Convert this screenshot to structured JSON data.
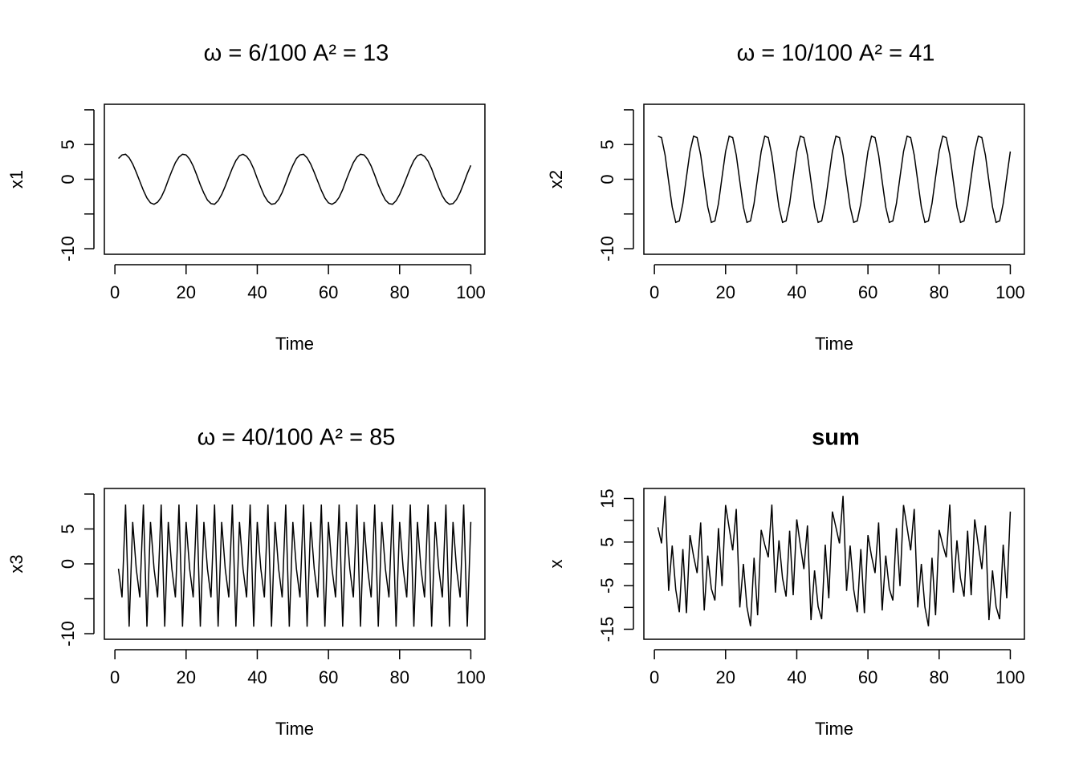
{
  "chart_data": [
    {
      "type": "line",
      "title": "ω = 6/100   A² = 13",
      "xlabel": "Time",
      "ylabel": "x1",
      "color": "#000000",
      "x": [
        1,
        2,
        3,
        4,
        5,
        6,
        7,
        8,
        9,
        10,
        11,
        12,
        13,
        14,
        15,
        16,
        17,
        18,
        19,
        20,
        21,
        22,
        23,
        24,
        25,
        26,
        27,
        28,
        29,
        30,
        31,
        32,
        33,
        34,
        35,
        36,
        37,
        38,
        39,
        40,
        41,
        42,
        43,
        44,
        45,
        46,
        47,
        48,
        49,
        50,
        51,
        52,
        53,
        54,
        55,
        56,
        57,
        58,
        59,
        60,
        61,
        62,
        63,
        64,
        65,
        66,
        67,
        68,
        69,
        70,
        71,
        72,
        73,
        74,
        75,
        76,
        77,
        78,
        79,
        80,
        81,
        82,
        83,
        84,
        85,
        86,
        87,
        88,
        89,
        90,
        91,
        92,
        93,
        94,
        95,
        96,
        97,
        98,
        99,
        100
      ],
      "values": [
        3.0,
        3.5,
        3.6,
        3.1,
        2.2,
        1.0,
        -0.3,
        -1.6,
        -2.7,
        -3.4,
        -3.6,
        -3.3,
        -2.6,
        -1.5,
        -0.1,
        1.2,
        2.4,
        3.2,
        3.6,
        3.5,
        2.9,
        1.9,
        0.6,
        -0.8,
        -2.0,
        -3.0,
        -3.5,
        -3.6,
        -3.1,
        -2.2,
        -1.0,
        0.3,
        1.6,
        2.7,
        3.4,
        3.6,
        3.3,
        2.6,
        1.5,
        0.1,
        -1.2,
        -2.4,
        -3.2,
        -3.6,
        -3.5,
        -2.9,
        -1.9,
        -0.6,
        0.8,
        2.0,
        3.0,
        3.5,
        3.6,
        3.1,
        2.2,
        1.0,
        -0.3,
        -1.6,
        -2.7,
        -3.4,
        -3.6,
        -3.3,
        -2.6,
        -1.5,
        -0.1,
        1.2,
        2.4,
        3.2,
        3.6,
        3.5,
        2.9,
        1.9,
        0.6,
        -0.8,
        -2.0,
        -3.0,
        -3.5,
        -3.6,
        -3.1,
        -2.2,
        -1.0,
        0.3,
        1.6,
        2.7,
        3.4,
        3.6,
        3.3,
        2.6,
        1.5,
        0.1,
        -1.2,
        -2.4,
        -3.2,
        -3.6,
        -3.5,
        -2.9,
        -1.9,
        -0.6,
        0.8,
        2.0
      ],
      "xlim": [
        -2.96,
        103.96
      ],
      "xticks": [
        0,
        20,
        40,
        60,
        80,
        100
      ],
      "ylim": [
        -10.8,
        10.8
      ],
      "yticks": [
        -10,
        0,
        5
      ],
      "yticks_unlabeled": [
        -5,
        10
      ]
    },
    {
      "type": "line",
      "title": "ω = 10/100   A² = 41",
      "xlabel": "Time",
      "ylabel": "x2",
      "color": "#000000",
      "x": [
        1,
        2,
        3,
        4,
        5,
        6,
        7,
        8,
        9,
        10,
        11,
        12,
        13,
        14,
        15,
        16,
        17,
        18,
        19,
        20,
        21,
        22,
        23,
        24,
        25,
        26,
        27,
        28,
        29,
        30,
        31,
        32,
        33,
        34,
        35,
        36,
        37,
        38,
        39,
        40,
        41,
        42,
        43,
        44,
        45,
        46,
        47,
        48,
        49,
        50,
        51,
        52,
        53,
        54,
        55,
        56,
        57,
        58,
        59,
        60,
        61,
        62,
        63,
        64,
        65,
        66,
        67,
        68,
        69,
        70,
        71,
        72,
        73,
        74,
        75,
        76,
        77,
        78,
        79,
        80,
        81,
        82,
        83,
        84,
        85,
        86,
        87,
        88,
        89,
        90,
        91,
        92,
        93,
        94,
        95,
        96,
        97,
        98,
        99,
        100
      ],
      "values": [
        6.2,
        6.0,
        3.5,
        -0.3,
        -4.0,
        -6.2,
        -6.0,
        -3.5,
        0.3,
        4.0,
        6.2,
        6.0,
        3.5,
        -0.3,
        -4.0,
        -6.2,
        -6.0,
        -3.5,
        0.3,
        4.0,
        6.2,
        6.0,
        3.5,
        -0.3,
        -4.0,
        -6.2,
        -6.0,
        -3.5,
        0.3,
        4.0,
        6.2,
        6.0,
        3.5,
        -0.3,
        -4.0,
        -6.2,
        -6.0,
        -3.5,
        0.3,
        4.0,
        6.2,
        6.0,
        3.5,
        -0.3,
        -4.0,
        -6.2,
        -6.0,
        -3.5,
        0.3,
        4.0,
        6.2,
        6.0,
        3.5,
        -0.3,
        -4.0,
        -6.2,
        -6.0,
        -3.5,
        0.3,
        4.0,
        6.2,
        6.0,
        3.5,
        -0.3,
        -4.0,
        -6.2,
        -6.0,
        -3.5,
        0.3,
        4.0,
        6.2,
        6.0,
        3.5,
        -0.3,
        -4.0,
        -6.2,
        -6.0,
        -3.5,
        0.3,
        4.0,
        6.2,
        6.0,
        3.5,
        -0.3,
        -4.0,
        -6.2,
        -6.0,
        -3.5,
        0.3,
        4.0,
        6.2,
        6.0,
        3.5,
        -0.3,
        -4.0,
        -6.2,
        -6.0,
        -3.5,
        0.3,
        4.0
      ],
      "xlim": [
        -2.96,
        103.96
      ],
      "xticks": [
        0,
        20,
        40,
        60,
        80,
        100
      ],
      "ylim": [
        -10.8,
        10.8
      ],
      "yticks": [
        -10,
        0,
        5
      ],
      "yticks_unlabeled": [
        -5,
        10
      ]
    },
    {
      "type": "line",
      "title": "ω = 40/100   A² = 85",
      "xlabel": "Time",
      "ylabel": "x3",
      "color": "#000000",
      "x": [
        1,
        2,
        3,
        4,
        5,
        6,
        7,
        8,
        9,
        10,
        11,
        12,
        13,
        14,
        15,
        16,
        17,
        18,
        19,
        20,
        21,
        22,
        23,
        24,
        25,
        26,
        27,
        28,
        29,
        30,
        31,
        32,
        33,
        34,
        35,
        36,
        37,
        38,
        39,
        40,
        41,
        42,
        43,
        44,
        45,
        46,
        47,
        48,
        49,
        50,
        51,
        52,
        53,
        54,
        55,
        56,
        57,
        58,
        59,
        60,
        61,
        62,
        63,
        64,
        65,
        66,
        67,
        68,
        69,
        70,
        71,
        72,
        73,
        74,
        75,
        76,
        77,
        78,
        79,
        80,
        81,
        82,
        83,
        84,
        85,
        86,
        87,
        88,
        89,
        90,
        91,
        92,
        93,
        94,
        95,
        96,
        97,
        98,
        99,
        100
      ],
      "values": [
        -0.7,
        -4.8,
        8.5,
        -9.0,
        6.0,
        -0.7,
        -4.8,
        8.5,
        -9.0,
        6.0,
        -0.7,
        -4.8,
        8.5,
        -9.0,
        6.0,
        -0.7,
        -4.8,
        8.5,
        -9.0,
        6.0,
        -0.7,
        -4.8,
        8.5,
        -9.0,
        6.0,
        -0.7,
        -4.8,
        8.5,
        -9.0,
        6.0,
        -0.7,
        -4.8,
        8.5,
        -9.0,
        6.0,
        -0.7,
        -4.8,
        8.5,
        -9.0,
        6.0,
        -0.7,
        -4.8,
        8.5,
        -9.0,
        6.0,
        -0.7,
        -4.8,
        8.5,
        -9.0,
        6.0,
        -0.7,
        -4.8,
        8.5,
        -9.0,
        6.0,
        -0.7,
        -4.8,
        8.5,
        -9.0,
        6.0,
        -0.7,
        -4.8,
        8.5,
        -9.0,
        6.0,
        -0.7,
        -4.8,
        8.5,
        -9.0,
        6.0,
        -0.7,
        -4.8,
        8.5,
        -9.0,
        6.0,
        -0.7,
        -4.8,
        8.5,
        -9.0,
        6.0,
        -0.7,
        -4.8,
        8.5,
        -9.0,
        6.0,
        -0.7,
        -4.8,
        8.5,
        -9.0,
        6.0,
        -0.7,
        -4.8,
        8.5,
        -9.0,
        6.0,
        -0.7,
        -4.8,
        8.5,
        -9.0,
        6.0
      ],
      "xlim": [
        -2.96,
        103.96
      ],
      "xticks": [
        0,
        20,
        40,
        60,
        80,
        100
      ],
      "ylim": [
        -10.8,
        10.8
      ],
      "yticks": [
        -10,
        0,
        5
      ],
      "yticks_unlabeled": [
        -5,
        10
      ]
    },
    {
      "type": "line",
      "title": "sum",
      "title_bold": true,
      "xlabel": "Time",
      "ylabel": "x",
      "color": "#000000",
      "x": [
        1,
        2,
        3,
        4,
        5,
        6,
        7,
        8,
        9,
        10,
        11,
        12,
        13,
        14,
        15,
        16,
        17,
        18,
        19,
        20,
        21,
        22,
        23,
        24,
        25,
        26,
        27,
        28,
        29,
        30,
        31,
        32,
        33,
        34,
        35,
        36,
        37,
        38,
        39,
        40,
        41,
        42,
        43,
        44,
        45,
        46,
        47,
        48,
        49,
        50,
        51,
        52,
        53,
        54,
        55,
        56,
        57,
        58,
        59,
        60,
        61,
        62,
        63,
        64,
        65,
        66,
        67,
        68,
        69,
        70,
        71,
        72,
        73,
        74,
        75,
        76,
        77,
        78,
        79,
        80,
        81,
        82,
        83,
        84,
        85,
        86,
        87,
        88,
        89,
        90,
        91,
        92,
        93,
        94,
        95,
        96,
        97,
        98,
        99,
        100
      ],
      "values": [
        8.4,
        4.7,
        15.6,
        -6.2,
        4.2,
        -5.9,
        -11.1,
        3.4,
        -11.3,
        6.6,
        1.8,
        -2.1,
        9.5,
        -10.7,
        1.9,
        -5.7,
        -8.4,
        8.2,
        -5.1,
        13.5,
        8.3,
        3.1,
        12.6,
        -10.0,
        0.0,
        -9.9,
        -14.3,
        1.4,
        -11.8,
        7.8,
        4.4,
        1.5,
        13.6,
        -6.6,
        5.4,
        -3.3,
        -7.5,
        7.6,
        -7.2,
        10.2,
        4.3,
        -1.2,
        8.8,
        -12.9,
        -1.5,
        -9.8,
        -12.7,
        4.4,
        -7.9,
        12.0,
        8.4,
        4.7,
        15.6,
        -6.2,
        4.2,
        -5.9,
        -11.1,
        3.4,
        -11.3,
        6.6,
        1.8,
        -2.1,
        9.5,
        -10.7,
        1.9,
        -5.7,
        -8.4,
        8.2,
        -5.1,
        13.5,
        8.3,
        3.1,
        12.6,
        -10.0,
        0.0,
        -9.9,
        -14.3,
        1.4,
        -11.8,
        7.8,
        4.4,
        1.5,
        13.6,
        -6.6,
        5.4,
        -3.3,
        -7.5,
        7.6,
        -7.2,
        10.2,
        4.3,
        -1.2,
        8.8,
        -12.9,
        -1.5,
        -9.8,
        -12.7,
        4.4,
        -7.9,
        12.0
      ],
      "xlim": [
        -2.96,
        103.96
      ],
      "xticks": [
        0,
        20,
        40,
        60,
        80,
        100
      ],
      "ylim": [
        -17.3,
        17.3
      ],
      "yticks": [
        -15,
        -5,
        5,
        15
      ],
      "yticks_unlabeled": [
        -10,
        0,
        10
      ]
    }
  ]
}
